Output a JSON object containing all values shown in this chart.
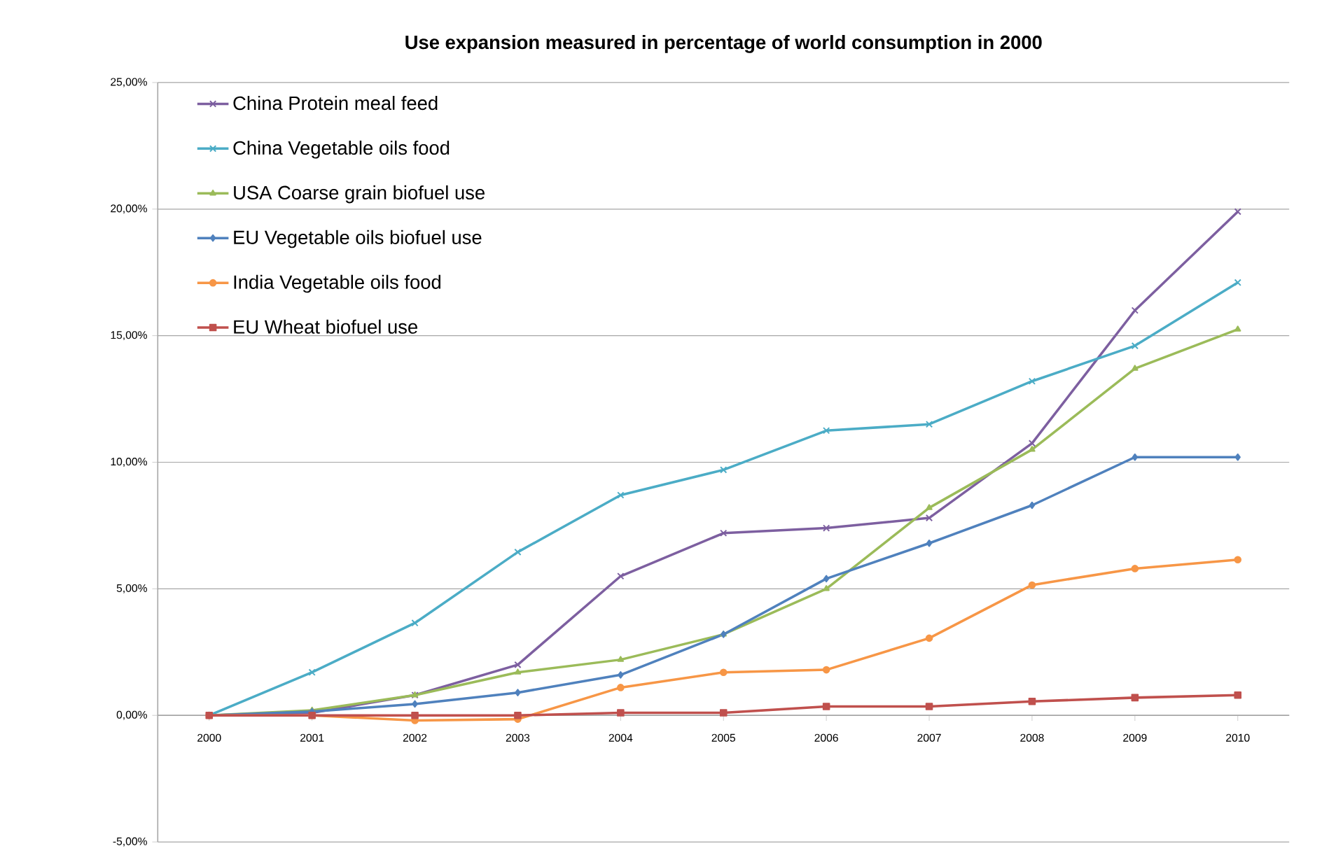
{
  "chart_data": {
    "type": "line",
    "title": "Use expansion measured in percentage of world consumption in 2000",
    "categories": [
      "2000",
      "2001",
      "2002",
      "2003",
      "2004",
      "2005",
      "2006",
      "2007",
      "2008",
      "2009",
      "2010"
    ],
    "series": [
      {
        "name": "China Protein meal feed",
        "color": "#7d5fa0",
        "marker": "cross",
        "values": [
          0,
          0.1,
          0.8,
          2.0,
          5.5,
          7.2,
          7.4,
          7.8,
          10.75,
          16.0,
          19.9
        ]
      },
      {
        "name": "China Vegetable oils food",
        "color": "#4bacc6",
        "marker": "cross",
        "values": [
          0,
          1.7,
          3.65,
          6.45,
          8.7,
          9.7,
          11.25,
          11.5,
          13.2,
          14.6,
          17.1
        ]
      },
      {
        "name": "USA Coarse grain biofuel use",
        "color": "#9bbb59",
        "marker": "triangle",
        "values": [
          0,
          0.2,
          0.8,
          1.7,
          2.2,
          3.2,
          5.0,
          8.2,
          10.5,
          13.7,
          15.25
        ]
      },
      {
        "name": "EU Vegetable oils biofuel use",
        "color": "#4f81bd",
        "marker": "diamond",
        "values": [
          0,
          0.15,
          0.45,
          0.9,
          1.6,
          3.2,
          5.4,
          6.8,
          8.3,
          10.2,
          10.2
        ]
      },
      {
        "name": "India Vegetable oils food",
        "color": "#f79646",
        "marker": "circle",
        "values": [
          0,
          0,
          -0.2,
          -0.15,
          1.1,
          1.7,
          1.8,
          3.05,
          5.15,
          5.8,
          6.15
        ]
      },
      {
        "name": "EU Wheat biofuel use",
        "color": "#c0504d",
        "marker": "square",
        "values": [
          0,
          0,
          0,
          0,
          0.1,
          0.1,
          0.35,
          0.35,
          0.55,
          0.7,
          0.8
        ]
      }
    ],
    "ylim": [
      -5,
      25
    ],
    "yticks": [
      {
        "value": -5,
        "label": "-5,00%"
      },
      {
        "value": 0,
        "label": "0,00%"
      },
      {
        "value": 5,
        "label": "5,00%"
      },
      {
        "value": 10,
        "label": "10,00%"
      },
      {
        "value": 15,
        "label": "15,00%"
      },
      {
        "value": 20,
        "label": "20,00%"
      },
      {
        "value": 25,
        "label": "25,00%"
      }
    ],
    "grid": "y",
    "legend": "top left",
    "line_style": "solid"
  }
}
